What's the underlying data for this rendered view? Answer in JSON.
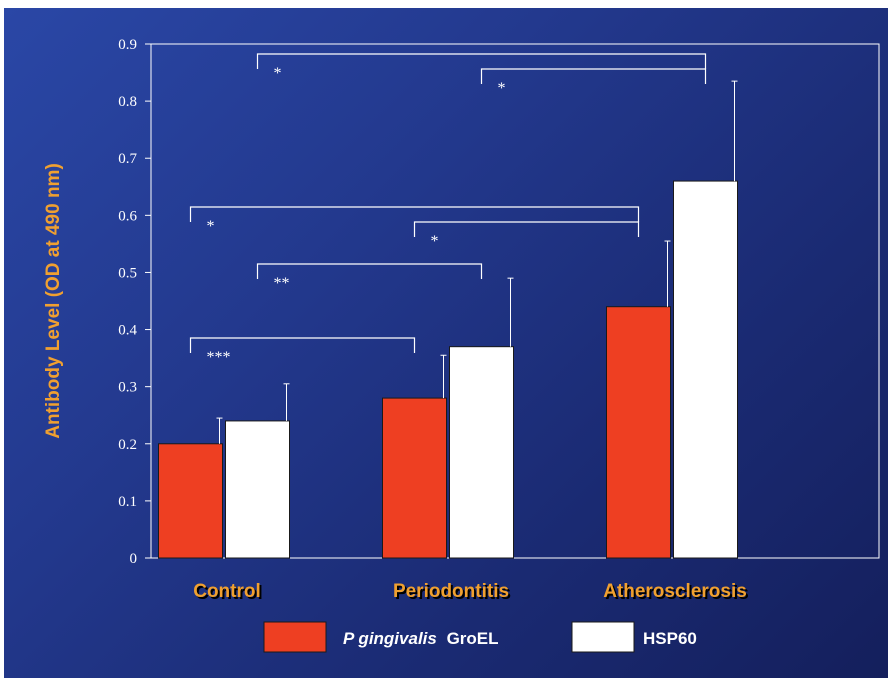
{
  "chart_data": {
    "type": "bar",
    "ylabel": "Antibody Level (OD at 490 nm)",
    "xlabel": "",
    "ylim": [
      0,
      0.9
    ],
    "yticks": [
      0,
      0.1,
      0.2,
      0.3,
      0.4,
      0.5,
      0.6,
      0.7,
      0.8,
      0.9
    ],
    "ytick_labels": [
      "0",
      "0.1",
      "0.2",
      "0.3",
      "0.4",
      "0.5",
      "0.6",
      "0.7",
      "0.8",
      "0.9"
    ],
    "categories": [
      "Control",
      "Periodontitis",
      "Atherosclerosis"
    ],
    "series": [
      {
        "name": "P gingivalis GroEL",
        "name_italic": "P gingivalis",
        "name_rest": "GroEL",
        "color": "#ee3f22",
        "values": [
          0.2,
          0.28,
          0.44
        ],
        "errors": [
          0.045,
          0.075,
          0.115
        ]
      },
      {
        "name": "HSP60",
        "color": "#ffffff",
        "values": [
          0.24,
          0.37,
          0.66
        ],
        "errors": [
          0.065,
          0.12,
          0.175
        ]
      }
    ],
    "comparisons": [
      {
        "from": [
          0,
          0
        ],
        "to": [
          1,
          0
        ],
        "label": "***"
      },
      {
        "from": [
          0,
          1
        ],
        "to": [
          1,
          1
        ],
        "label": "**"
      },
      {
        "from": [
          0,
          0
        ],
        "to": [
          2,
          0
        ],
        "label": "*"
      },
      {
        "from": [
          1,
          0
        ],
        "to": [
          2,
          0
        ],
        "label": "*"
      },
      {
        "from": [
          0,
          1
        ],
        "to": [
          2,
          1
        ],
        "label": "*"
      },
      {
        "from": [
          1,
          1
        ],
        "to": [
          2,
          1
        ],
        "label": "*"
      }
    ],
    "grid": false,
    "legend_position": "bottom"
  },
  "colors": {
    "label_accent": "#f0a030",
    "background": "#1f3385"
  }
}
